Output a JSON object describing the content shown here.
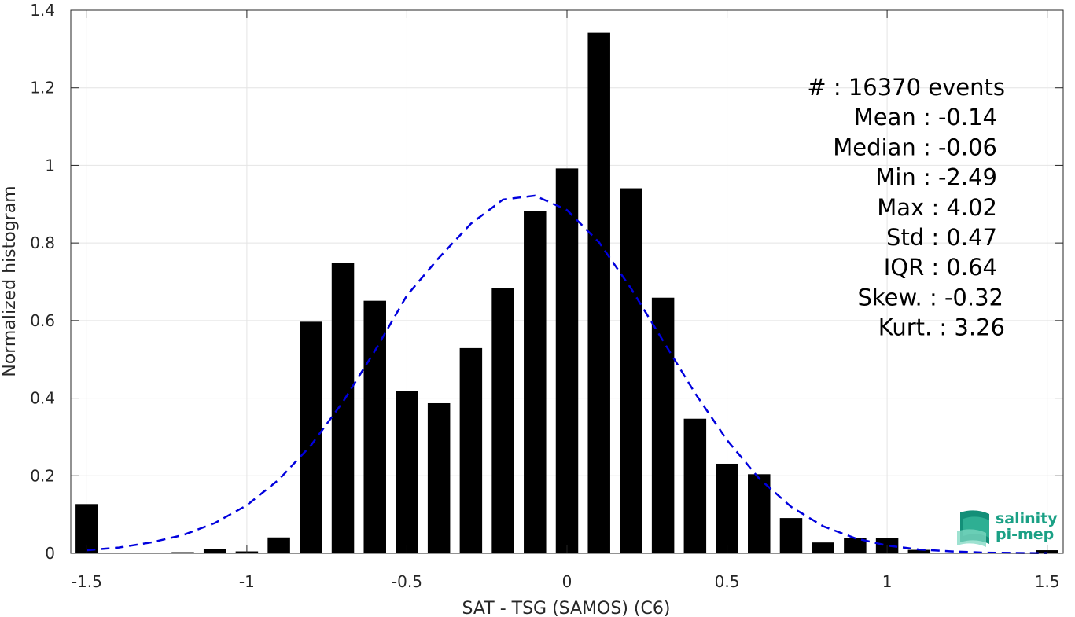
{
  "chart_data": {
    "type": "bar",
    "title": "",
    "xlabel": "SAT - TSG (SAMOS) (C6)",
    "ylabel": "Normalized histogram",
    "xlim": [
      -1.55,
      1.55
    ],
    "ylim": [
      0,
      1.4
    ],
    "xticks": [
      "-1.5",
      "-1",
      "-0.5",
      "0",
      "0.5",
      "1",
      "1.5"
    ],
    "xtick_values": [
      -1.5,
      -1,
      -0.5,
      0,
      0.5,
      1,
      1.5
    ],
    "yticks": [
      "0",
      "0.2",
      "0.4",
      "0.6",
      "0.8",
      "1",
      "1.2",
      "1.4"
    ],
    "ytick_values": [
      0,
      0.2,
      0.4,
      0.6,
      0.8,
      1,
      1.2,
      1.4
    ],
    "grid": true,
    "bar_color": "#000000",
    "curve_color": "#0000dd",
    "bins": [
      -1.5,
      -1.4,
      -1.3,
      -1.2,
      -1.1,
      -1.0,
      -0.9,
      -0.8,
      -0.7,
      -0.6,
      -0.5,
      -0.4,
      -0.3,
      -0.2,
      -0.1,
      0.0,
      0.1,
      0.2,
      0.3,
      0.4,
      0.5,
      0.6,
      0.7,
      0.8,
      0.9,
      1.0,
      1.1,
      1.2,
      1.3,
      1.4,
      1.5
    ],
    "values": [
      0.127,
      0,
      0,
      0.003,
      0.011,
      0.005,
      0.041,
      0.597,
      0.748,
      0.651,
      0.418,
      0.387,
      0.529,
      0.683,
      0.882,
      0.992,
      1.342,
      0.941,
      0.659,
      0.347,
      0.231,
      0.204,
      0.091,
      0.028,
      0.039,
      0.04,
      0.009,
      0.002,
      0.001,
      0.001,
      0.008
    ],
    "fit_curve": {
      "style": "dashed",
      "x": [
        -1.5,
        -1.4,
        -1.3,
        -1.2,
        -1.1,
        -1.0,
        -0.9,
        -0.8,
        -0.7,
        -0.6,
        -0.5,
        -0.4,
        -0.3,
        -0.2,
        -0.1,
        0.0,
        0.1,
        0.2,
        0.3,
        0.4,
        0.5,
        0.6,
        0.7,
        0.8,
        0.9,
        1.0,
        1.1,
        1.2,
        1.3,
        1.4,
        1.5
      ],
      "y": [
        0.008,
        0.015,
        0.028,
        0.047,
        0.078,
        0.124,
        0.19,
        0.278,
        0.39,
        0.522,
        0.665,
        0.762,
        0.85,
        0.912,
        0.922,
        0.885,
        0.802,
        0.683,
        0.548,
        0.413,
        0.292,
        0.193,
        0.12,
        0.07,
        0.039,
        0.02,
        0.01,
        0.005,
        0.002,
        0.001,
        0.0005
      ]
    },
    "annotations": [
      "#  : 16370 events",
      "Mean : -0.14",
      "Median : -0.06",
      "Min : -2.49",
      "Max : 4.02",
      "Std : 0.47",
      "IQR : 0.64",
      "Skew. : -0.32",
      "Kurt. : 3.26"
    ],
    "legend": "none"
  },
  "logo": {
    "name": "salinity-pi-mep-logo",
    "line1": "salinity",
    "line2": "pi-mep",
    "color": "#1aa085"
  }
}
